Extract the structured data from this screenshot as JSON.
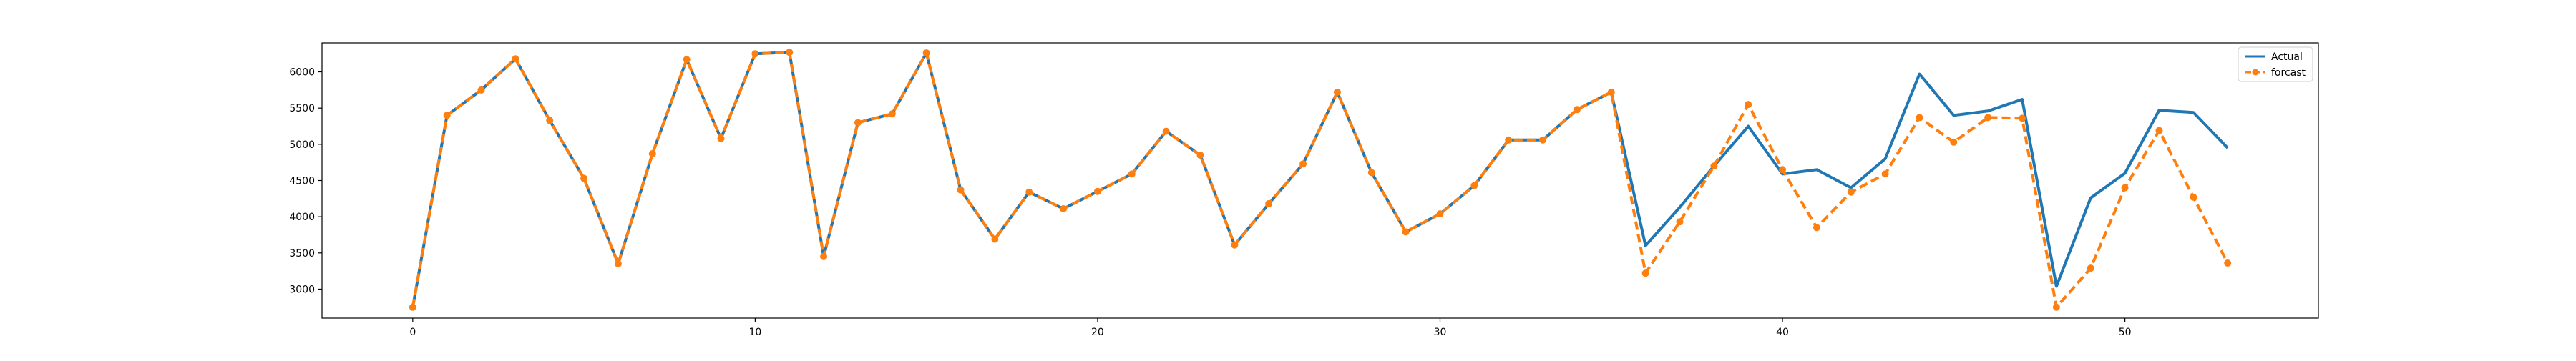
{
  "chart_data": {
    "type": "line",
    "title": "",
    "xlabel": "",
    "ylabel": "",
    "xlim": [
      -2.65,
      55.65
    ],
    "ylim": [
      2600,
      6400
    ],
    "xticks": [
      0,
      10,
      20,
      30,
      40,
      50
    ],
    "yticks": [
      3000,
      3500,
      4000,
      4500,
      5000,
      5500,
      6000
    ],
    "grid": false,
    "legend": "top-right",
    "series": [
      {
        "name": "Actual",
        "color": "#1f77b4",
        "style": "solid",
        "marker": "none",
        "values": [
          2750,
          5400,
          5750,
          6180,
          5330,
          4530,
          3350,
          4870,
          6170,
          5080,
          6250,
          6270,
          3450,
          5300,
          5420,
          6260,
          4370,
          3690,
          4340,
          4110,
          4350,
          4590,
          5180,
          4850,
          3610,
          4180,
          4730,
          5720,
          4610,
          3790,
          4040,
          4430,
          5060,
          5060,
          5480,
          5720,
          3600,
          4130,
          4700,
          5250,
          4590,
          4650,
          4400,
          4800,
          5970,
          5400,
          5460,
          5620,
          3040,
          4260,
          4600,
          5470,
          5440,
          4950
        ]
      },
      {
        "name": "forcast",
        "color": "#ff7f0e",
        "style": "dashed",
        "marker": "circle",
        "values": [
          2750,
          5400,
          5750,
          6180,
          5330,
          4530,
          3350,
          4870,
          6170,
          5080,
          6250,
          6270,
          3450,
          5300,
          5420,
          6260,
          4370,
          3690,
          4340,
          4110,
          4350,
          4590,
          5180,
          4850,
          3610,
          4180,
          4730,
          5720,
          4610,
          3790,
          4040,
          4430,
          5060,
          5060,
          5480,
          5720,
          3220,
          3930,
          4700,
          5550,
          4650,
          3850,
          4340,
          4590,
          5370,
          5030,
          5370,
          5360,
          2750,
          3290,
          4400,
          5190,
          4270,
          3360
        ]
      }
    ]
  }
}
